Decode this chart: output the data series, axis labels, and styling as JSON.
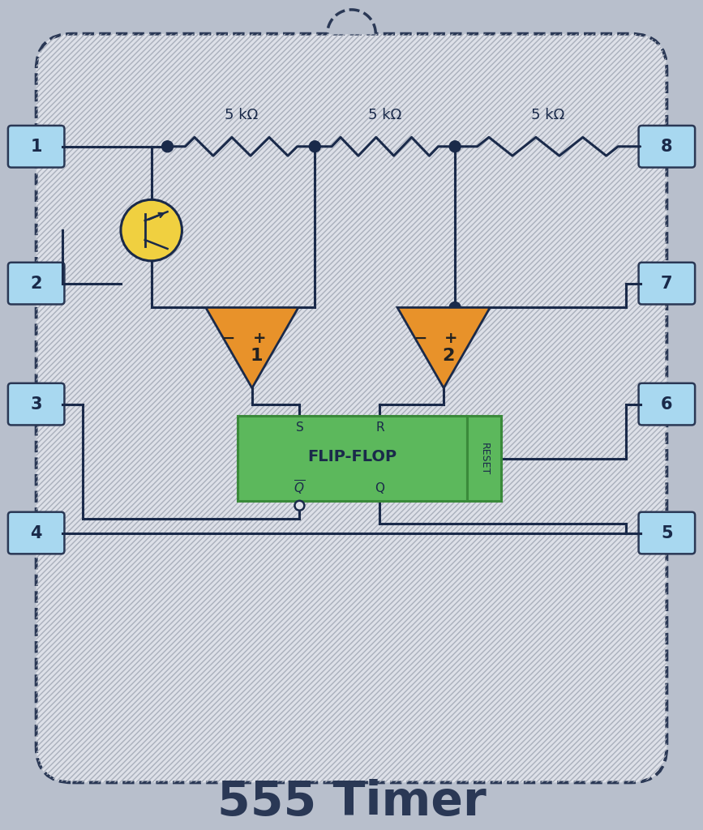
{
  "bg_outer": "#b8bfcc",
  "bg_inner": "#dde0e8",
  "border_color": "#2a3855",
  "pin_color": "#a8d8f0",
  "pin_text_color": "#1a2a4a",
  "comparator_fill": "#e8922a",
  "comparator_stroke": "#1a2a4a",
  "flipflop_fill": "#5cb85c",
  "flipflop_stroke": "#3a8a3a",
  "transistor_fill": "#f0d040",
  "transistor_stroke": "#1a2a4a",
  "wire_color": "#1a2a4a",
  "title": "555 Timer",
  "title_fontsize": 42,
  "resistor_labels": [
    "5 kΩ",
    "5 kΩ",
    "5 kΩ"
  ],
  "pin_labels_left": [
    "1",
    "2",
    "3",
    "4"
  ],
  "pin_labels_right": [
    "8",
    "7",
    "6",
    "5"
  ]
}
